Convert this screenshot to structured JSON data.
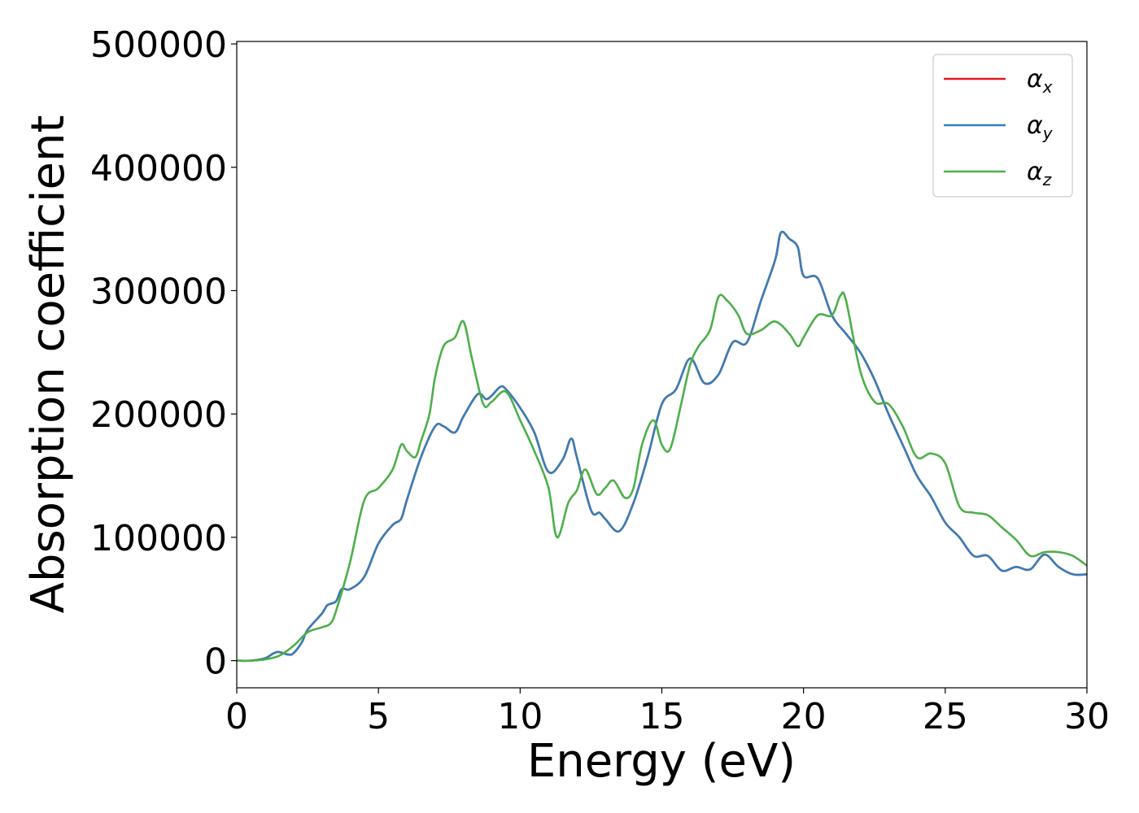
{
  "chart_data": {
    "type": "line",
    "title": "",
    "xlabel": "Energy (eV)",
    "ylabel": "Absorption coefficient",
    "xlim": [
      0,
      30
    ],
    "ylim": [
      -22000,
      502000
    ],
    "xticks": [
      "0",
      "5",
      "10",
      "15",
      "20",
      "25",
      "30"
    ],
    "yticks": [
      "0",
      "100000",
      "200000",
      "300000",
      "400000",
      "500000"
    ],
    "grid": false,
    "legend_position": "top-right",
    "colors": {
      "alpha_x": "#e41a1c",
      "alpha_y": "#377eb8",
      "alpha_z": "#4daf4a"
    },
    "legend": [
      {
        "symbol": "α",
        "sub": "x",
        "series": "alpha_x"
      },
      {
        "symbol": "α",
        "sub": "y",
        "series": "alpha_y"
      },
      {
        "symbol": "α",
        "sub": "z",
        "series": "alpha_z"
      }
    ],
    "series": [
      {
        "name": "α_x",
        "key": "alpha_x",
        "x": [
          0,
          0.5,
          1.0,
          1.3,
          1.5,
          1.8,
          2.0,
          2.3,
          2.5,
          3.0,
          3.2,
          3.5,
          3.7,
          4.0,
          4.5,
          5.0,
          5.5,
          5.8,
          6.0,
          6.5,
          7.0,
          7.3,
          7.7,
          8.0,
          8.5,
          8.8,
          9.0,
          9.3,
          9.5,
          10.0,
          10.5,
          11.0,
          11.5,
          11.8,
          12.0,
          12.5,
          12.8,
          13.0,
          13.5,
          14.0,
          14.5,
          15.0,
          15.5,
          16.0,
          16.5,
          17.0,
          17.5,
          18.0,
          18.5,
          19.0,
          19.2,
          19.5,
          19.8,
          20.0,
          20.5,
          21.0,
          21.5,
          22.0,
          22.5,
          23.0,
          23.5,
          24.0,
          24.5,
          25.0,
          25.5,
          26.0,
          26.5,
          27.0,
          27.5,
          28.0,
          28.5,
          29.0,
          29.5,
          30.0
        ],
        "values": [
          0,
          0,
          2000,
          6000,
          7000,
          5000,
          6000,
          15000,
          25000,
          38000,
          45000,
          48000,
          58000,
          58000,
          68000,
          95000,
          110000,
          115000,
          130000,
          165000,
          190000,
          190000,
          185000,
          198000,
          216000,
          212000,
          215000,
          222000,
          220000,
          205000,
          185000,
          153000,
          163000,
          180000,
          165000,
          122000,
          120000,
          115000,
          105000,
          128000,
          165000,
          208000,
          220000,
          245000,
          225000,
          232000,
          258000,
          258000,
          292000,
          325000,
          347000,
          342000,
          335000,
          312000,
          310000,
          280000,
          265000,
          250000,
          228000,
          200000,
          175000,
          150000,
          133000,
          112000,
          100000,
          85000,
          85000,
          73000,
          76000,
          74000,
          86000,
          76000,
          70000,
          70000
        ]
      },
      {
        "name": "α_y",
        "key": "alpha_y",
        "x": [
          0,
          0.5,
          1.0,
          1.3,
          1.5,
          1.8,
          2.0,
          2.3,
          2.5,
          3.0,
          3.2,
          3.5,
          3.7,
          4.0,
          4.5,
          5.0,
          5.5,
          5.8,
          6.0,
          6.5,
          7.0,
          7.3,
          7.7,
          8.0,
          8.5,
          8.8,
          9.0,
          9.3,
          9.5,
          10.0,
          10.5,
          11.0,
          11.5,
          11.8,
          12.0,
          12.5,
          12.8,
          13.0,
          13.5,
          14.0,
          14.5,
          15.0,
          15.5,
          16.0,
          16.5,
          17.0,
          17.5,
          18.0,
          18.5,
          19.0,
          19.2,
          19.5,
          19.8,
          20.0,
          20.5,
          21.0,
          21.5,
          22.0,
          22.5,
          23.0,
          23.5,
          24.0,
          24.5,
          25.0,
          25.5,
          26.0,
          26.5,
          27.0,
          27.5,
          28.0,
          28.5,
          29.0,
          29.5,
          30.0
        ],
        "values": [
          0,
          0,
          2000,
          6000,
          7000,
          5000,
          6000,
          15000,
          25000,
          38000,
          45000,
          48000,
          58000,
          58000,
          68000,
          95000,
          110000,
          115000,
          130000,
          165000,
          190000,
          190000,
          185000,
          198000,
          216000,
          212000,
          215000,
          222000,
          220000,
          205000,
          185000,
          153000,
          163000,
          180000,
          165000,
          122000,
          120000,
          115000,
          105000,
          128000,
          165000,
          208000,
          220000,
          245000,
          225000,
          232000,
          258000,
          258000,
          292000,
          325000,
          347000,
          342000,
          335000,
          312000,
          310000,
          280000,
          265000,
          250000,
          228000,
          200000,
          175000,
          150000,
          133000,
          112000,
          100000,
          85000,
          85000,
          73000,
          76000,
          74000,
          86000,
          76000,
          70000,
          70000
        ]
      },
      {
        "name": "α_z",
        "key": "alpha_z",
        "x": [
          0,
          0.5,
          1.0,
          1.5,
          2.0,
          2.5,
          3.0,
          3.3,
          3.5,
          4.0,
          4.5,
          5.0,
          5.5,
          5.8,
          6.0,
          6.3,
          6.5,
          6.8,
          7.0,
          7.3,
          7.7,
          8.0,
          8.3,
          8.7,
          9.0,
          9.5,
          10.0,
          10.5,
          11.0,
          11.3,
          11.7,
          12.0,
          12.3,
          12.7,
          13.0,
          13.3,
          13.7,
          14.0,
          14.3,
          14.7,
          15.0,
          15.3,
          15.7,
          16.0,
          16.3,
          16.7,
          17.0,
          17.3,
          17.7,
          18.0,
          18.5,
          19.0,
          19.5,
          19.8,
          20.0,
          20.5,
          21.0,
          21.3,
          21.5,
          22.0,
          22.5,
          23.0,
          23.5,
          24.0,
          24.5,
          25.0,
          25.5,
          26.0,
          26.5,
          27.0,
          27.5,
          28.0,
          28.5,
          29.0,
          29.5,
          30.0
        ],
        "values": [
          0,
          0,
          1000,
          4000,
          12000,
          23000,
          27000,
          30000,
          40000,
          80000,
          130000,
          140000,
          155000,
          175000,
          170000,
          165000,
          178000,
          200000,
          230000,
          255000,
          262000,
          275000,
          245000,
          208000,
          210000,
          218000,
          195000,
          170000,
          140000,
          100000,
          128000,
          138000,
          155000,
          135000,
          140000,
          146000,
          132000,
          140000,
          175000,
          195000,
          175000,
          172000,
          210000,
          240000,
          255000,
          268000,
          295000,
          292000,
          280000,
          265000,
          268000,
          275000,
          265000,
          255000,
          262000,
          280000,
          280000,
          296000,
          292000,
          235000,
          210000,
          208000,
          190000,
          165000,
          168000,
          160000,
          125000,
          120000,
          118000,
          108000,
          98000,
          85000,
          88000,
          88000,
          85000,
          77000
        ]
      }
    ]
  }
}
